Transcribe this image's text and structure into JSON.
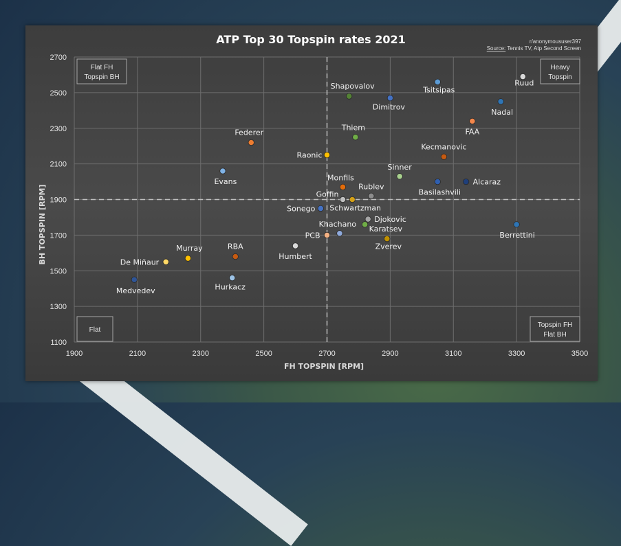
{
  "chart_data": {
    "type": "scatter",
    "title": "ATP Top 30 Topspin rates 2021",
    "credit": "r/anonymoususer397",
    "source_label": "Source:",
    "source_text": " Tennis TV, Atp Second Screen",
    "xlabel": "FH TOPSPIN [RPM]",
    "ylabel": "BH TOPSPIN [RPM]",
    "xlim": [
      1900,
      3500
    ],
    "ylim": [
      1100,
      2700
    ],
    "xticks": [
      1900,
      2100,
      2300,
      2500,
      2700,
      2900,
      3100,
      3300,
      3500
    ],
    "yticks": [
      1100,
      1300,
      1500,
      1700,
      1900,
      2100,
      2300,
      2500,
      2700
    ],
    "grid": true,
    "reference_lines": {
      "x": 2700,
      "y": 1900
    },
    "quadrant_labels": {
      "top_left": [
        "Flat FH",
        "Topspin BH"
      ],
      "top_right": [
        "Heavy",
        "Topspin"
      ],
      "bottom_left": [
        "Flat"
      ],
      "bottom_right": [
        "Topspin FH",
        "Flat BH"
      ]
    },
    "points": [
      {
        "name": "Ruud",
        "x": 3320,
        "y": 2590,
        "color": "#d9d9d9"
      },
      {
        "name": "Tsitsipas",
        "x": 3050,
        "y": 2560,
        "color": "#5b9bd5"
      },
      {
        "name": "Shapovalov",
        "x": 2770,
        "y": 2480,
        "color": "#548235"
      },
      {
        "name": "Dimitrov",
        "x": 2900,
        "y": 2470,
        "color": "#4472c4"
      },
      {
        "name": "Nadal",
        "x": 3250,
        "y": 2450,
        "color": "#2e75b6"
      },
      {
        "name": "FAA",
        "x": 3160,
        "y": 2340,
        "color": "#f4874b"
      },
      {
        "name": "Thiem",
        "x": 2790,
        "y": 2250,
        "color": "#70ad47"
      },
      {
        "name": "Federer",
        "x": 2460,
        "y": 2220,
        "color": "#ed7d31"
      },
      {
        "name": "Raonic",
        "x": 2700,
        "y": 2150,
        "color": "#ffc000"
      },
      {
        "name": "Kecmanovic",
        "x": 3070,
        "y": 2140,
        "color": "#c55a11"
      },
      {
        "name": "Evans",
        "x": 2370,
        "y": 2060,
        "color": "#7fb2e5"
      },
      {
        "name": "Sinner",
        "x": 2930,
        "y": 2030,
        "color": "#a9d18e"
      },
      {
        "name": "Basilashvili",
        "x": 3050,
        "y": 2000,
        "color": "#2f5fb0"
      },
      {
        "name": "Alcaraz",
        "x": 3140,
        "y": 2000,
        "color": "#1f3f7a"
      },
      {
        "name": "Monfils",
        "x": 2750,
        "y": 1970,
        "color": "#e36c0a"
      },
      {
        "name": "Rublev",
        "x": 2840,
        "y": 1920,
        "color": "#8c8c8c"
      },
      {
        "name": "Goffin",
        "x": 2750,
        "y": 1900,
        "color": "#bfbfbf"
      },
      {
        "name": "Schwartzman",
        "x": 2780,
        "y": 1900,
        "color": "#d4a017"
      },
      {
        "name": "Sonego",
        "x": 2680,
        "y": 1850,
        "color": "#4472c4"
      },
      {
        "name": "Djokovic",
        "x": 2830,
        "y": 1790,
        "color": "#a6a6a6"
      },
      {
        "name": "Karatsev",
        "x": 2820,
        "y": 1760,
        "color": "#70ad47"
      },
      {
        "name": "Berrettini",
        "x": 3300,
        "y": 1760,
        "color": "#2e75b6"
      },
      {
        "name": "Khachano",
        "x": 2740,
        "y": 1710,
        "color": "#8faadc"
      },
      {
        "name": "PCB",
        "x": 2700,
        "y": 1700,
        "color": "#f4b183"
      },
      {
        "name": "Zverev",
        "x": 2890,
        "y": 1680,
        "color": "#bf9000"
      },
      {
        "name": "Humbert",
        "x": 2600,
        "y": 1640,
        "color": "#d9d9d9"
      },
      {
        "name": "RBA",
        "x": 2410,
        "y": 1580,
        "color": "#c55a11"
      },
      {
        "name": "Murray",
        "x": 2260,
        "y": 1570,
        "color": "#ffc000"
      },
      {
        "name": "De Miñaur",
        "x": 2190,
        "y": 1550,
        "color": "#ffd966"
      },
      {
        "name": "Hurkacz",
        "x": 2400,
        "y": 1460,
        "color": "#9dc3e6"
      },
      {
        "name": "Medvedev",
        "x": 2090,
        "y": 1450,
        "color": "#2f5597"
      }
    ]
  }
}
